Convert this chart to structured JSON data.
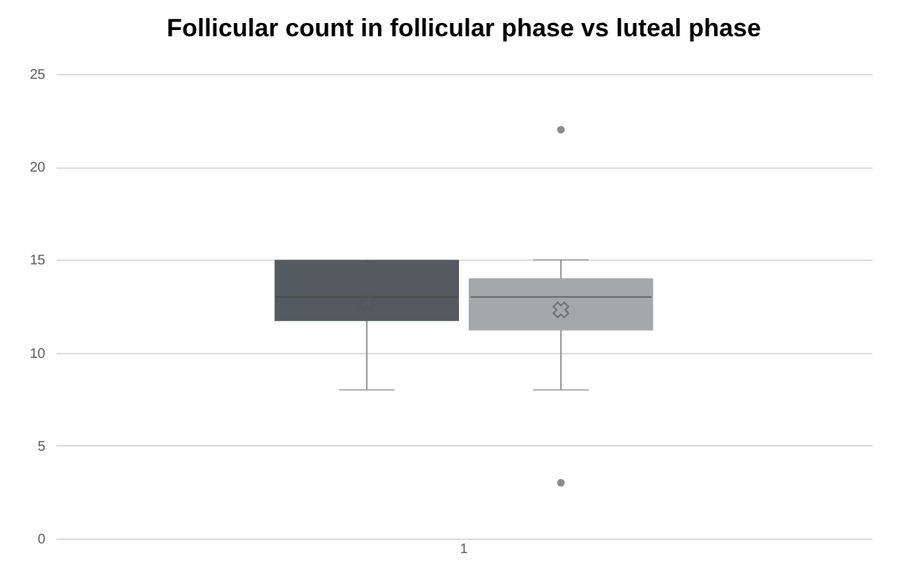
{
  "chart_data": {
    "type": "box",
    "title": "Follicular count in follicular phase vs luteal phase",
    "categories": [
      "1"
    ],
    "series": [
      {
        "color": "#555a5e",
        "boxes": [
          {
            "low": 8,
            "q1": 11.7,
            "median": 13,
            "q3": 15,
            "high": 15,
            "mean": 12.7
          }
        ]
      },
      {
        "color": "#a5a7a8",
        "boxes": [
          {
            "low": 8,
            "q1": 11.2,
            "median": 13,
            "q3": 14,
            "high": 15,
            "mean": 12.3,
            "outliers": [
              22,
              3
            ]
          }
        ]
      }
    ],
    "ylim": [
      0,
      25
    ],
    "yticks": [
      0,
      5,
      10,
      15,
      20,
      25
    ],
    "grid": "y"
  }
}
